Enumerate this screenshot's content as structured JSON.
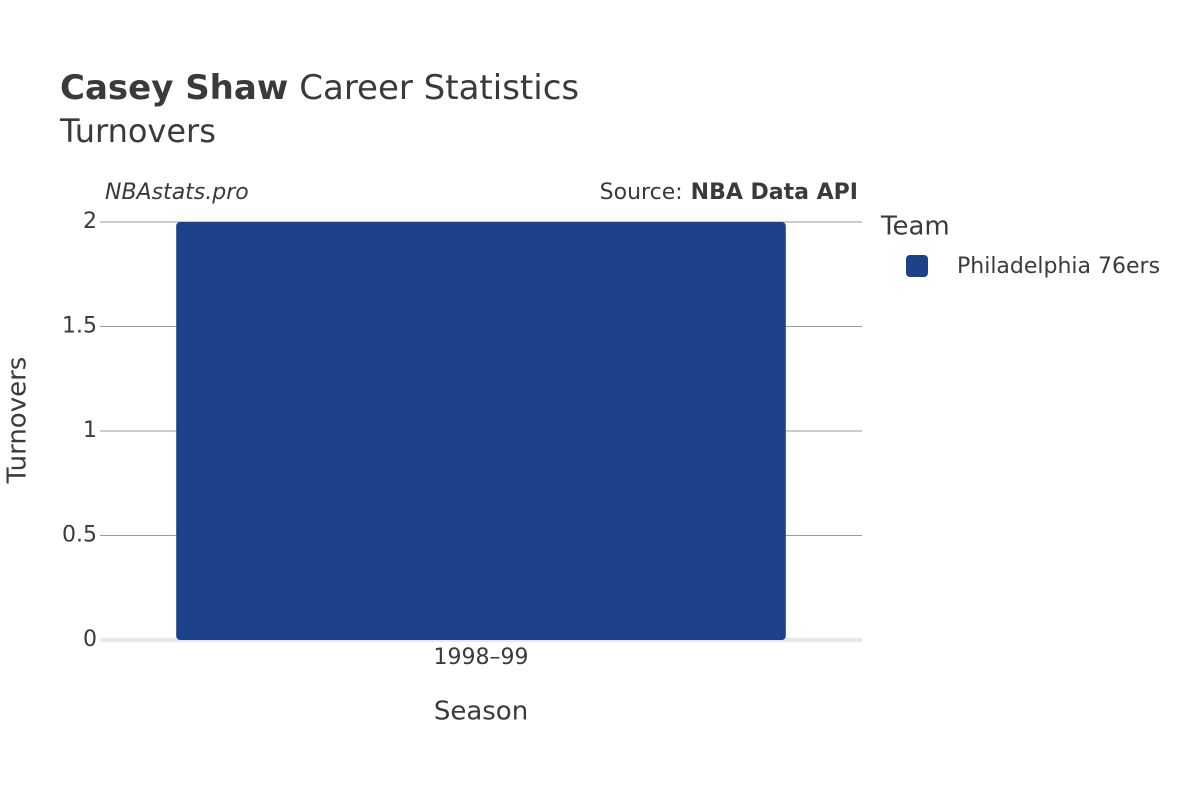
{
  "chart_data": {
    "type": "bar",
    "title_bold": "Casey Shaw",
    "title": "Career Statistics",
    "subtitle": "Turnovers",
    "watermark": "NBAstats.pro",
    "source_label": "Source:",
    "source": "NBA Data API",
    "x_label": "Season",
    "y_label": "Turnovers",
    "legend_title": "Team",
    "categories": [
      "1998–99"
    ],
    "series": [
      {
        "name": "Philadelphia 76ers",
        "color": "#1d4289",
        "values": [
          2
        ]
      }
    ],
    "ylim": [
      0,
      2
    ],
    "yticks": [
      0,
      0.5,
      1,
      1.5,
      2
    ],
    "grid": true,
    "legend": "right"
  }
}
